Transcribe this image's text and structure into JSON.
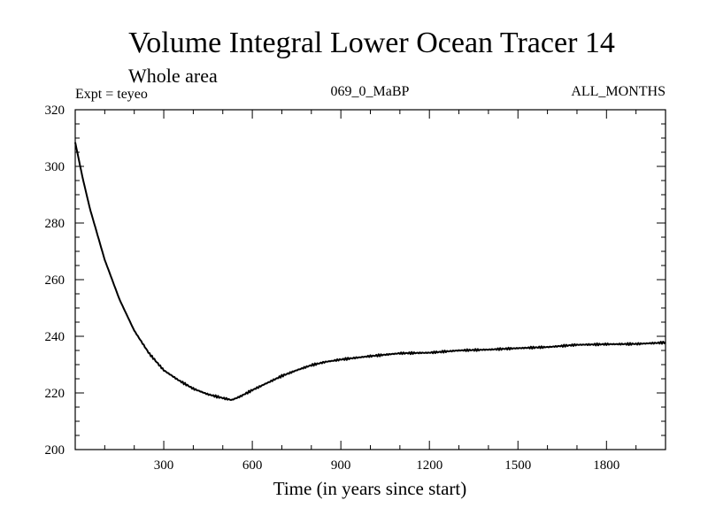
{
  "chart_data": {
    "type": "line",
    "title": "Volume Integral Lower Ocean Tracer 14",
    "subtitle": "Whole area",
    "experiment": "Expt = teyeo",
    "period": "069_0_MaBP",
    "months": "ALL_MONTHS",
    "xlabel": "Time (in years since start)",
    "ylabel": "",
    "xlim": [
      0,
      2000
    ],
    "ylim": [
      200,
      320
    ],
    "xticks": [
      300,
      600,
      900,
      1200,
      1500,
      1800
    ],
    "yticks": [
      200,
      220,
      240,
      260,
      280,
      300,
      320
    ],
    "series": [
      {
        "name": "Tracer 14",
        "color": "#000000",
        "x": [
          0,
          25,
          50,
          100,
          150,
          200,
          250,
          300,
          350,
          400,
          450,
          500,
          530,
          560,
          600,
          650,
          700,
          750,
          800,
          850,
          900,
          1000,
          1100,
          1200,
          1300,
          1400,
          1500,
          1600,
          1700,
          1800,
          1900,
          2000
        ],
        "y": [
          308.5,
          296,
          285,
          267,
          253,
          242,
          234,
          228,
          224.5,
          221.5,
          219.5,
          218.2,
          217.5,
          218.8,
          221,
          223.5,
          226,
          228,
          229.8,
          231,
          231.8,
          233,
          234,
          234.2,
          235,
          235.3,
          235.8,
          236.2,
          237,
          237.2,
          237.3,
          237.8
        ]
      }
    ]
  }
}
